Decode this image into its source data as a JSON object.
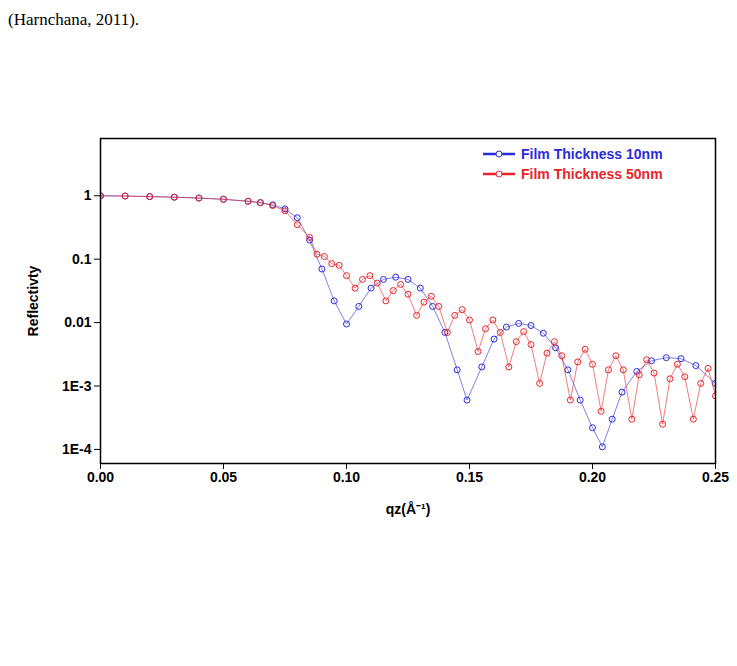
{
  "chart_data": {
    "type": "scatter",
    "caption": "(Harnchana, 2011).",
    "x_label": "qz(Å⁻¹)",
    "y_label": "Reflectivty",
    "log": "y",
    "grid": false,
    "legend": "top-right",
    "xlim": [
      0,
      0.25
    ],
    "xticks": [
      {
        "value": 0,
        "label": "0.00"
      },
      {
        "value": 0.05,
        "label": "0.05"
      },
      {
        "value": 0.1,
        "label": "0.10"
      },
      {
        "value": 0.15,
        "label": "0.15"
      },
      {
        "value": 0.2,
        "label": "0.20"
      },
      {
        "value": 0.25,
        "label": "0.25"
      }
    ],
    "ylim": [
      6e-05,
      8
    ],
    "yticks": [
      {
        "value": 0.0001,
        "label": "1E-4"
      },
      {
        "value": 0.001,
        "label": "1E-3"
      },
      0.01,
      0.1,
      1
    ],
    "series": [
      {
        "name": "Film Thickness 10nm",
        "color": "#2b2bd9",
        "marker": "circle",
        "line_style": "solid",
        "x": [
          0,
          0.01,
          0.02,
          0.03,
          0.04,
          0.05,
          0.06,
          0.065,
          0.07,
          0.075,
          0.08,
          0.085,
          0.09,
          0.095,
          0.1,
          0.105,
          0.11,
          0.115,
          0.12,
          0.125,
          0.13,
          0.135,
          0.14,
          0.145,
          0.149,
          0.155,
          0.16,
          0.165,
          0.17,
          0.175,
          0.18,
          0.185,
          0.19,
          0.195,
          0.2,
          0.204,
          0.208,
          0.212,
          0.218,
          0.224,
          0.23,
          0.236,
          0.242,
          0.25
        ],
        "values": [
          1,
          0.99,
          0.97,
          0.95,
          0.92,
          0.88,
          0.82,
          0.78,
          0.72,
          0.62,
          0.45,
          0.2,
          0.07,
          0.022,
          0.0095,
          0.018,
          0.035,
          0.048,
          0.052,
          0.048,
          0.035,
          0.018,
          0.007,
          0.0018,
          0.0006,
          0.002,
          0.0055,
          0.0085,
          0.0097,
          0.009,
          0.0068,
          0.004,
          0.0018,
          0.0006,
          0.00022,
          0.00011,
          0.0003,
          0.0008,
          0.0017,
          0.0025,
          0.0028,
          0.0027,
          0.0021,
          0.0011
        ]
      },
      {
        "name": "Film Thickness 50nm",
        "color": "#e8242a",
        "marker": "circle",
        "line_style": "solid",
        "x": [
          0,
          0.01,
          0.02,
          0.03,
          0.04,
          0.05,
          0.06,
          0.065,
          0.07,
          0.075,
          0.08,
          0.085,
          0.088,
          0.091,
          0.094,
          0.097,
          0.1,
          0.1035,
          0.1065,
          0.1095,
          0.1125,
          0.116,
          0.119,
          0.122,
          0.125,
          0.1285,
          0.1315,
          0.1345,
          0.1375,
          0.141,
          0.144,
          0.147,
          0.15,
          0.1535,
          0.1565,
          0.1595,
          0.1625,
          0.166,
          0.169,
          0.172,
          0.175,
          0.1785,
          0.1815,
          0.1845,
          0.1875,
          0.191,
          0.194,
          0.197,
          0.2,
          0.2035,
          0.2065,
          0.2095,
          0.2125,
          0.216,
          0.219,
          0.222,
          0.225,
          0.2285,
          0.2315,
          0.2345,
          0.2375,
          0.241,
          0.244,
          0.247,
          0.25
        ],
        "values": [
          1,
          0.99,
          0.97,
          0.95,
          0.92,
          0.88,
          0.82,
          0.78,
          0.7,
          0.58,
          0.35,
          0.22,
          0.12,
          0.11,
          0.085,
          0.08,
          0.055,
          0.035,
          0.048,
          0.055,
          0.042,
          0.022,
          0.032,
          0.04,
          0.028,
          0.013,
          0.021,
          0.026,
          0.018,
          0.007,
          0.013,
          0.016,
          0.011,
          0.0035,
          0.008,
          0.011,
          0.007,
          0.002,
          0.005,
          0.0072,
          0.0045,
          0.0011,
          0.0033,
          0.005,
          0.003,
          0.0006,
          0.0024,
          0.0038,
          0.0022,
          0.0004,
          0.0018,
          0.003,
          0.0018,
          0.0003,
          0.0015,
          0.0026,
          0.0016,
          0.00025,
          0.0013,
          0.0022,
          0.0014,
          0.0003,
          0.0011,
          0.0019,
          0.0007
        ]
      }
    ]
  }
}
